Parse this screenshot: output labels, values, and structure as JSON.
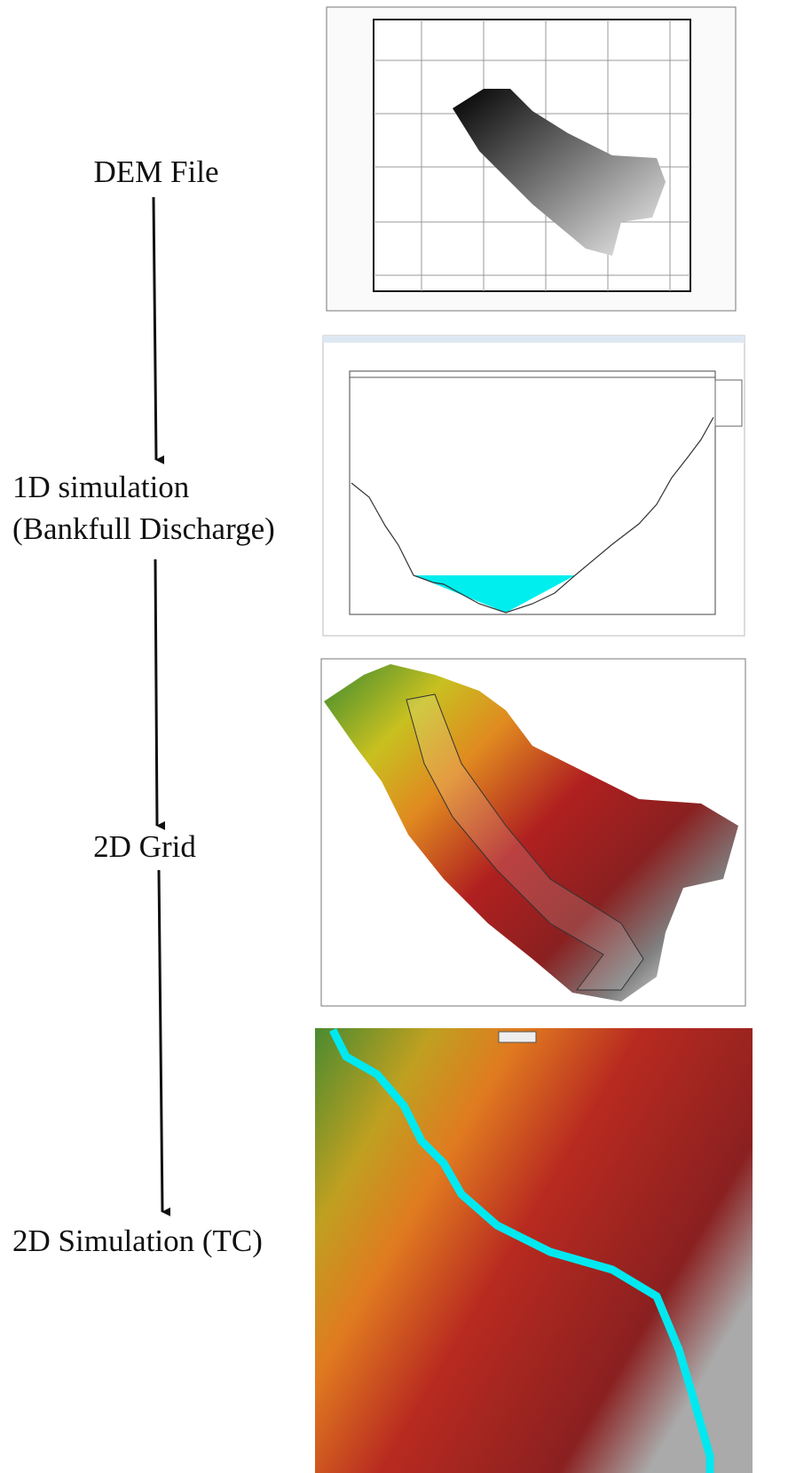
{
  "steps": [
    {
      "lines": [
        "DEM File"
      ]
    },
    {
      "lines": [
        "1D simulation",
        "(Bankfull Discharge)"
      ]
    },
    {
      "lines": [
        "2D Grid"
      ]
    },
    {
      "lines": [
        "2D Simulation (TC)"
      ]
    }
  ]
}
